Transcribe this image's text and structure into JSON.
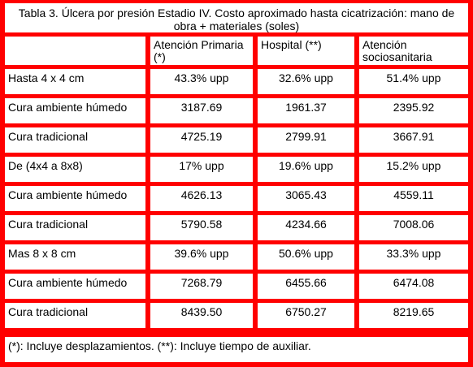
{
  "table": {
    "title": "Tabla 3. Úlcera por presión Estadio IV. Costo aproximado hasta cicatrización: mano de obra + materiales (soles)",
    "columns": [
      "",
      "Atención Primaria (*)",
      "Hospital (**)",
      "Atención sociosanitaria"
    ],
    "rows": [
      {
        "label": "Hasta 4 x 4 cm",
        "values": [
          "43.3% upp",
          "32.6% upp",
          "51.4% upp"
        ]
      },
      {
        "label": "Cura ambiente húmedo",
        "values": [
          "3187.69",
          "1961.37",
          "2395.92"
        ]
      },
      {
        "label": "Cura tradicional",
        "values": [
          "4725.19",
          "2799.91",
          "3667.91"
        ]
      },
      {
        "label": "De (4x4 a 8x8)",
        "values": [
          "17% upp",
          "19.6% upp",
          "15.2% upp"
        ]
      },
      {
        "label": "Cura ambiente húmedo",
        "values": [
          "4626.13",
          "3065.43",
          "4559.11"
        ]
      },
      {
        "label": "Cura tradicional",
        "values": [
          "5790.58",
          "4234.66",
          "7008.06"
        ]
      },
      {
        "label": "Mas 8 x 8 cm",
        "values": [
          "39.6% upp",
          "50.6% upp",
          "33.3% upp"
        ]
      },
      {
        "label": "Cura ambiente húmedo",
        "values": [
          "7268.79",
          "6455.66",
          "6474.08"
        ]
      },
      {
        "label": "Cura tradicional",
        "values": [
          "8439.50",
          "6750.27",
          "8219.65"
        ]
      }
    ],
    "footnote": "(*): Incluye desplazamientos. (**): Incluye tiempo de auxiliar."
  },
  "colors": {
    "border": "#ff0000",
    "cell_background": "#ffffff"
  }
}
